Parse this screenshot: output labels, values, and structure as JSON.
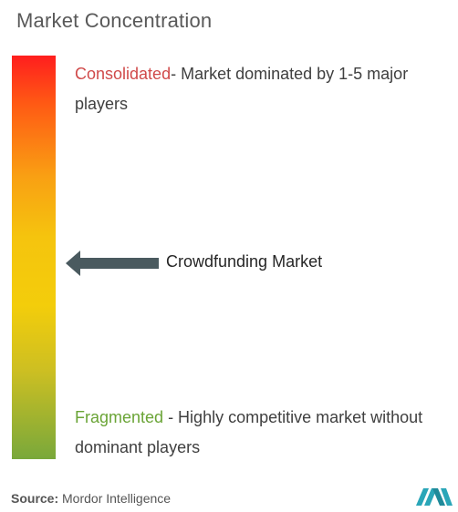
{
  "title": "Market Concentration",
  "consolidated": {
    "label": "Consolidated",
    "description": "- Market dominated by 1-5 major players"
  },
  "fragmented": {
    "label": "Fragmented",
    "description": " - Highly competitive market without dominant players"
  },
  "market_label": "Crowdfunding Market",
  "source": {
    "label": "Source:",
    "text": " Mordor Intelligence"
  },
  "colors": {
    "consolidated": "#d04a4a",
    "fragmented": "#6aa436",
    "arrow": "#4a5a5f",
    "logo": "#2aa6b8"
  },
  "logo_icon": "mordor-intelligence-logo"
}
